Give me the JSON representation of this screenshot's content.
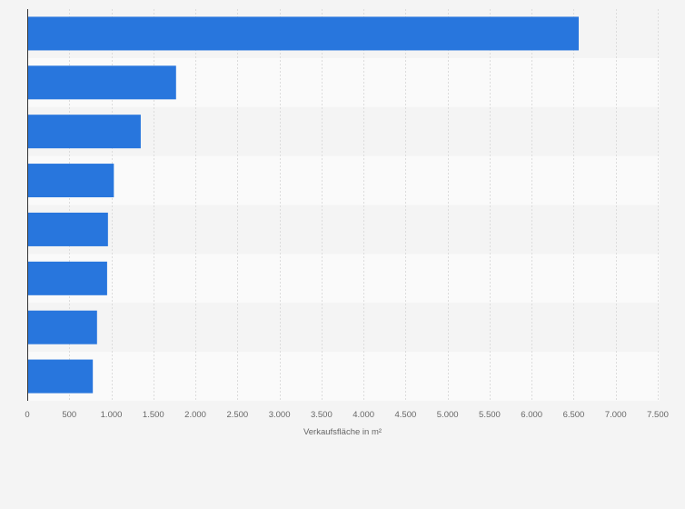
{
  "chart_data": {
    "type": "bar",
    "orientation": "horizontal",
    "categories": [
      "",
      "",
      "",
      "",
      "",
      "",
      "",
      ""
    ],
    "values": [
      6560,
      1770,
      1350,
      1030,
      960,
      950,
      830,
      780
    ],
    "xlabel": "Verkaufsfläche in m²",
    "ylabel": "",
    "xlim": [
      0,
      7500
    ],
    "ticks": [
      0,
      500,
      1000,
      1500,
      2000,
      2500,
      3000,
      3500,
      4000,
      4500,
      5000,
      5500,
      6000,
      6500,
      7000,
      7500
    ],
    "tick_labels": [
      "0",
      "500",
      "1.000",
      "1.500",
      "2.000",
      "2.500",
      "3.000",
      "3.500",
      "4.000",
      "4.500",
      "5.000",
      "5.500",
      "6.000",
      "6.500",
      "7.000",
      "7.500"
    ],
    "grid": true,
    "bar_color": "#2876dd",
    "row_colors": [
      "#f4f4f4",
      "#fafafa"
    ]
  }
}
